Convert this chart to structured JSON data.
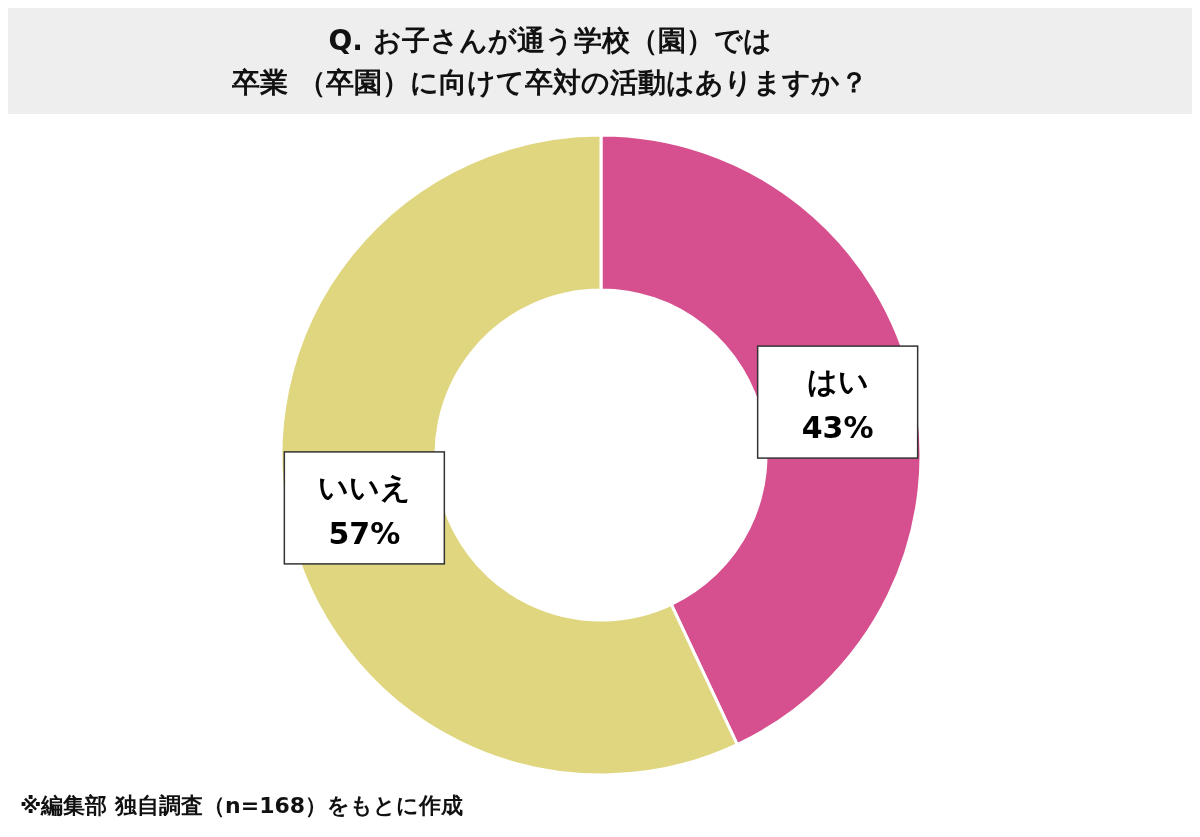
{
  "chart_data": {
    "type": "donut",
    "title": "Q. お子さんが通う学校（園）では",
    "subtitle": "卒業 （卒園）に向けて卒対の活動はありますか？",
    "categories": [
      "はい",
      "いいえ"
    ],
    "values": [
      43,
      57
    ],
    "value_labels": [
      "43%",
      "57%"
    ],
    "colors": [
      "#d64f8e",
      "#e0d680"
    ],
    "legend": false,
    "annotations": [
      "※編集部 独自調査（n=168）をもとに作成"
    ]
  }
}
